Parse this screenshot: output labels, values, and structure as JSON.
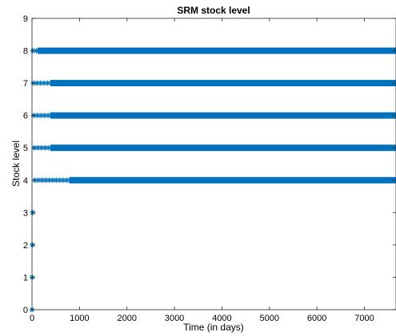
{
  "chart_data": {
    "type": "scatter",
    "title": "SRM stock level",
    "xlabel": "Time (in days)",
    "ylabel": "Stock level",
    "xlim": [
      0,
      7665
    ],
    "ylim": [
      0,
      9
    ],
    "xticks": [
      0,
      1000,
      2000,
      3000,
      4000,
      5000,
      6000,
      7000
    ],
    "yticks": [
      0,
      1,
      2,
      3,
      4,
      5,
      6,
      7,
      8,
      9
    ],
    "xtick_labels": [
      "0",
      "1000",
      "2000",
      "3000",
      "4000",
      "5000",
      "6000",
      "7000"
    ],
    "ytick_labels": [
      "0",
      "1",
      "2",
      "3",
      "4",
      "5",
      "6",
      "7",
      "8",
      "9"
    ],
    "marker": "asterisk",
    "color": "#0072BD",
    "grid": false,
    "legend": "none",
    "series": [
      {
        "points": [
          [
            0,
            0
          ],
          [
            5,
            1
          ],
          [
            10,
            2
          ],
          [
            15,
            3
          ]
        ],
        "bands": [
          {
            "y": 4,
            "x_start": 60,
            "x_end": 7665,
            "continuous_from": 820
          },
          {
            "y": 5,
            "x_start": 50,
            "x_end": 7665,
            "continuous_from": 420
          },
          {
            "y": 6,
            "x_start": 40,
            "x_end": 7665,
            "continuous_from": 420
          },
          {
            "y": 7,
            "x_start": 30,
            "x_end": 7665,
            "continuous_from": 420
          },
          {
            "y": 8,
            "x_start": 20,
            "x_end": 7665,
            "continuous_from": 150
          }
        ]
      }
    ]
  }
}
